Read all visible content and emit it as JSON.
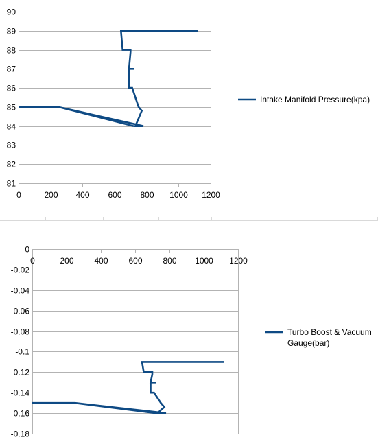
{
  "colors": {
    "series": "#0e4a84",
    "grid": "#b3b3b3",
    "axis_text": "#000000"
  },
  "chart_data": [
    {
      "type": "line",
      "title": "",
      "xlabel": "",
      "ylabel": "",
      "xlim": [
        0,
        1200
      ],
      "ylim": [
        81,
        90
      ],
      "xticks": [
        0,
        200,
        400,
        600,
        800,
        1000,
        1200
      ],
      "yticks": [
        81,
        82,
        83,
        84,
        85,
        86,
        87,
        88,
        89,
        90
      ],
      "grid": "horizontal",
      "legend_position": "right",
      "series": [
        {
          "name": "Intake Manifold Pressure(kpa)",
          "x": [
            1120,
            640,
            650,
            700,
            700,
            700,
            690,
            720,
            690,
            690,
            690,
            690,
            710,
            750,
            770,
            730,
            780,
            250,
            0,
            180,
            250,
            720
          ],
          "y": [
            89,
            89,
            88,
            88,
            87.95,
            87.9,
            87,
            87,
            87,
            86.5,
            86.1,
            86,
            86,
            85,
            84.8,
            84,
            84,
            85,
            85,
            85,
            85,
            84
          ]
        }
      ]
    },
    {
      "type": "line",
      "title": "",
      "xlabel": "",
      "ylabel": "",
      "xlim": [
        0,
        1200
      ],
      "ylim": [
        -0.18,
        0
      ],
      "xticks": [
        0,
        200,
        400,
        600,
        800,
        1000,
        1200
      ],
      "yticks": [
        0,
        -0.02,
        -0.04,
        -0.06,
        -0.08,
        -0.1,
        -0.12,
        -0.14,
        -0.16,
        -0.18
      ],
      "grid": "horizontal",
      "legend_position": "right",
      "series": [
        {
          "name": "Turbo Boost & Vacuum Gauge(bar)",
          "x": [
            1120,
            640,
            650,
            700,
            700,
            700,
            690,
            720,
            690,
            690,
            690,
            690,
            710,
            750,
            770,
            730,
            780,
            250,
            0,
            180,
            250,
            720
          ],
          "y": [
            -0.11,
            -0.11,
            -0.12,
            -0.12,
            -0.121,
            -0.122,
            -0.13,
            -0.13,
            -0.13,
            -0.135,
            -0.139,
            -0.14,
            -0.14,
            -0.15,
            -0.154,
            -0.16,
            -0.16,
            -0.15,
            -0.15,
            -0.15,
            -0.15,
            -0.16
          ]
        }
      ]
    }
  ]
}
